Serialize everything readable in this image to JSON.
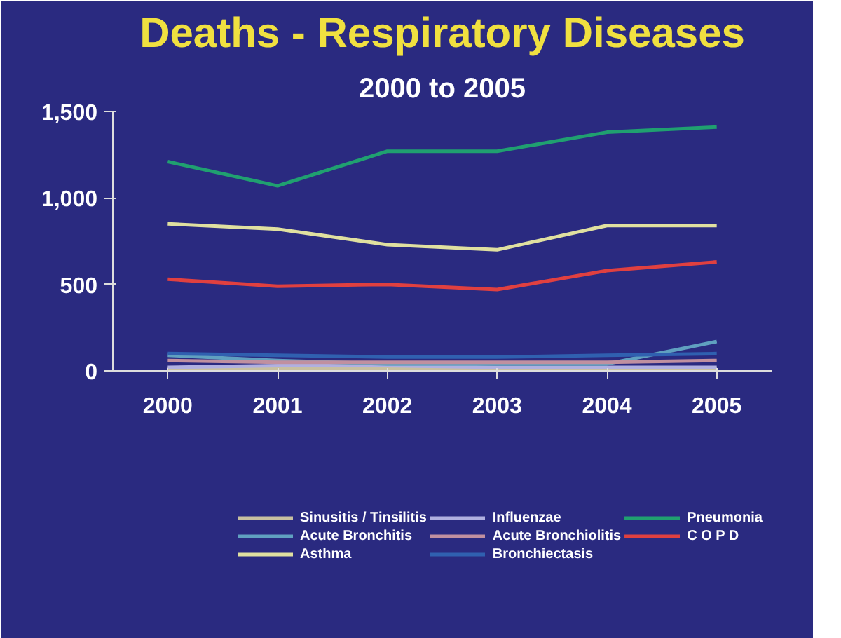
{
  "chart_data": {
    "type": "line",
    "title": "Deaths - Respiratory Diseases",
    "subtitle": "2000 to 2005",
    "categories": [
      "2000",
      "2001",
      "2002",
      "2003",
      "2004",
      "2005"
    ],
    "series": [
      {
        "name": "Sinusitis / Tinsilitis",
        "color": "#c8c0a0",
        "values": [
          10,
          10,
          10,
          10,
          10,
          10
        ]
      },
      {
        "name": "Influenzae",
        "color": "#b0b0e0",
        "values": [
          20,
          30,
          30,
          20,
          20,
          20
        ]
      },
      {
        "name": "Pneumonia",
        "color": "#20a070",
        "values": [
          1210,
          1070,
          1270,
          1270,
          1380,
          1410
        ]
      },
      {
        "name": "Acute Bronchitis",
        "color": "#60a0c0",
        "values": [
          90,
          60,
          40,
          40,
          40,
          170
        ]
      },
      {
        "name": "Acute Bronchiolitis",
        "color": "#c090a0",
        "values": [
          60,
          50,
          50,
          50,
          50,
          60
        ]
      },
      {
        "name": "C O P D",
        "color": "#e04040",
        "values": [
          530,
          490,
          500,
          470,
          580,
          630
        ]
      },
      {
        "name": "Asthma",
        "color": "#e0e0a0",
        "values": [
          850,
          820,
          730,
          700,
          840,
          840
        ]
      },
      {
        "name": "Bronchiectasis",
        "color": "#3060b0",
        "values": [
          100,
          90,
          80,
          80,
          90,
          100
        ]
      }
    ],
    "ylim": [
      0,
      1500
    ],
    "yticks": [
      0,
      500,
      {
        "value": 1000,
        "label": "1,000"
      },
      {
        "value": 1500,
        "label": "1,500"
      }
    ],
    "grid": false,
    "legend": "bottom",
    "marker": "none",
    "line_style": "solid"
  }
}
